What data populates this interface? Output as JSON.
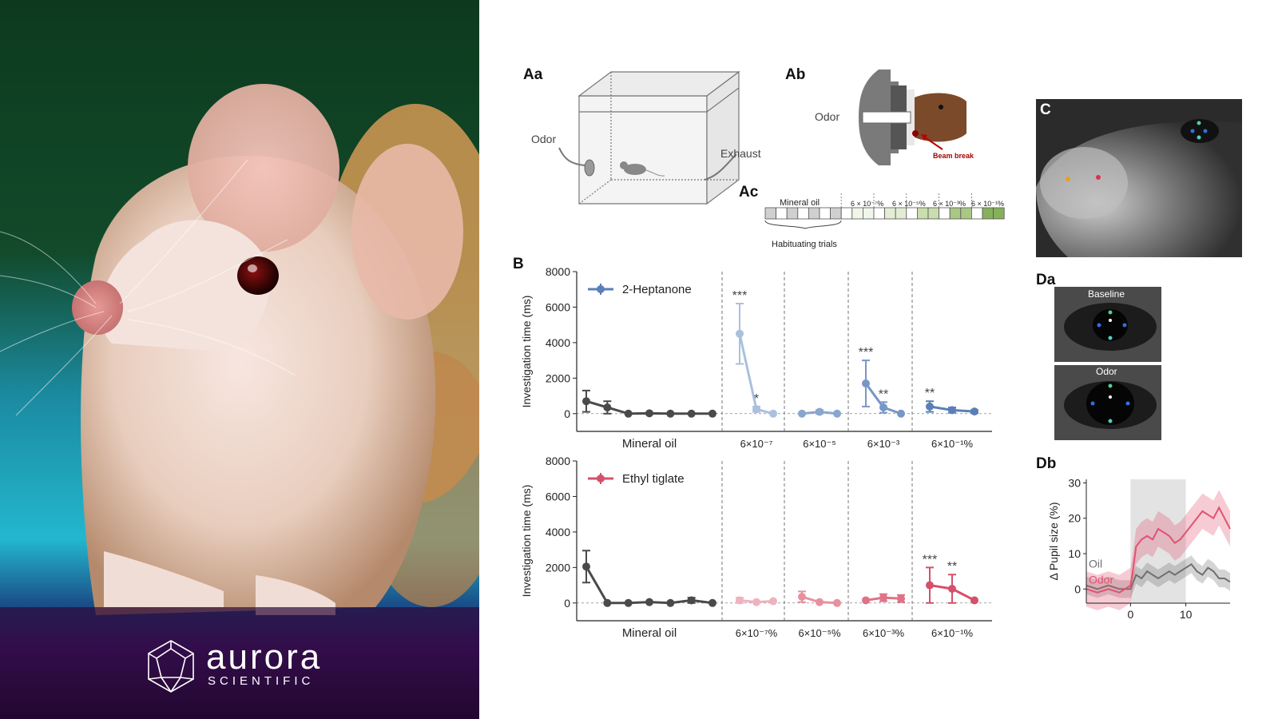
{
  "brand": {
    "name": "aurora",
    "subname": "SCIENTIFIC"
  },
  "panels": {
    "Aa": {
      "label": "Aa",
      "odor": "Odor",
      "exhaust": "Exhaust"
    },
    "Ab": {
      "label": "Ab",
      "odor": "Odor",
      "beam": "Beam break"
    },
    "Ac": {
      "label": "Ac",
      "mineral": "Mineral oil",
      "habituating": "Habituating trials",
      "concs": [
        "6 × 10⁻⁷%",
        "6 × 10⁻⁵%",
        "6 × 10⁻³%",
        "6 × 10⁻¹%"
      ]
    },
    "B": {
      "label": "B"
    },
    "C": {
      "label": "C"
    },
    "Da": {
      "label": "Da",
      "baseline": "Baseline",
      "odor": "Odor"
    },
    "Db": {
      "label": "Db"
    }
  },
  "colors": {
    "mineral": "#4a4a4a",
    "heptanone": "#5a7fb8",
    "tiglate": "#d5506a",
    "stim_shade": "#e3e3e3"
  },
  "chart_data": [
    {
      "type": "line",
      "panel": "B-top",
      "ylabel": "Investigation time (ms)",
      "yticks": [
        0,
        2000,
        4000,
        6000,
        8000
      ],
      "ylim": [
        -1000,
        8000
      ],
      "legend": "2-Heptanone",
      "group_labels": [
        "Mineral oil",
        "6×10⁻⁷",
        "6×10⁻⁵",
        "6×10⁻³",
        "6×10⁻¹%"
      ],
      "series": [
        {
          "name": "Mineral oil",
          "group": 0,
          "color": "#4a4a4a",
          "values": [
            700,
            350,
            0,
            20,
            0,
            0,
            0
          ],
          "err": [
            600,
            350,
            0,
            0,
            0,
            0,
            0
          ]
        },
        {
          "name": "6×10⁻⁷",
          "group": 1,
          "color": "#aac0dd",
          "values": [
            4500,
            250,
            0
          ],
          "err": [
            1700,
            150,
            0
          ],
          "stars": [
            "***",
            "*",
            ""
          ]
        },
        {
          "name": "6×10⁻⁵",
          "group": 2,
          "color": "#8aa6cf",
          "values": [
            0,
            100,
            0
          ],
          "err": [
            0,
            100,
            0
          ],
          "stars": [
            "",
            "",
            ""
          ]
        },
        {
          "name": "6×10⁻³",
          "group": 3,
          "color": "#7797c6",
          "values": [
            1700,
            350,
            0
          ],
          "err": [
            1300,
            300,
            0
          ],
          "stars": [
            "***",
            "**",
            ""
          ]
        },
        {
          "name": "6×10⁻¹%",
          "group": 4,
          "color": "#5a7fb8",
          "values": [
            400,
            200,
            120
          ],
          "err": [
            300,
            150,
            80
          ],
          "stars": [
            "**",
            "",
            ""
          ]
        }
      ]
    },
    {
      "type": "line",
      "panel": "B-bottom",
      "ylabel": "Investigation time (ms)",
      "yticks": [
        0,
        2000,
        4000,
        6000,
        8000
      ],
      "ylim": [
        -1000,
        8000
      ],
      "legend": "Ethyl tiglate",
      "group_labels": [
        "Mineral oil",
        "6×10⁻⁷%",
        "6×10⁻⁵%",
        "6×10⁻³%",
        "6×10⁻¹%"
      ],
      "series": [
        {
          "name": "Mineral oil",
          "group": 0,
          "color": "#4a4a4a",
          "values": [
            2050,
            0,
            0,
            50,
            0,
            150,
            0
          ],
          "err": [
            900,
            0,
            0,
            0,
            0,
            150,
            0
          ]
        },
        {
          "name": "6×10⁻⁷%",
          "group": 1,
          "color": "#eeb3bf",
          "values": [
            150,
            50,
            100
          ],
          "err": [
            150,
            0,
            0
          ],
          "stars": [
            "",
            "",
            ""
          ]
        },
        {
          "name": "6×10⁻⁵%",
          "group": 2,
          "color": "#e7919f",
          "values": [
            350,
            50,
            0
          ],
          "err": [
            300,
            0,
            0
          ],
          "stars": [
            "",
            "",
            ""
          ]
        },
        {
          "name": "6×10⁻³%",
          "group": 3,
          "color": "#df7286",
          "values": [
            150,
            300,
            250
          ],
          "err": [
            0,
            200,
            200
          ],
          "stars": [
            "",
            "",
            ""
          ]
        },
        {
          "name": "6×10⁻¹%",
          "group": 4,
          "color": "#d5506a",
          "values": [
            1000,
            800,
            150
          ],
          "err": [
            1000,
            800,
            0
          ],
          "stars": [
            "***",
            "**",
            ""
          ]
        }
      ]
    },
    {
      "type": "line",
      "panel": "Db",
      "ylabel": "Δ Pupil size (%)",
      "yticks": [
        0,
        10,
        20,
        30
      ],
      "xticks": [
        0,
        10
      ],
      "xlim": [
        -8,
        18
      ],
      "ylim": [
        -4,
        31
      ],
      "stim_window": [
        0,
        10
      ],
      "series": [
        {
          "name": "Oil",
          "color": "#6f6f6f",
          "x": [
            -8,
            -6,
            -4,
            -2,
            0,
            0.5,
            1,
            2,
            3,
            4,
            5,
            6,
            7,
            8,
            9,
            10,
            11,
            12,
            13,
            14,
            15,
            16,
            17,
            18
          ],
          "y": [
            1,
            0,
            1,
            0,
            0,
            2,
            4,
            3,
            5,
            4,
            3,
            4,
            5,
            4,
            5,
            6,
            7,
            5,
            4,
            6,
            5,
            3,
            3,
            2
          ],
          "band": 2.5
        },
        {
          "name": "Odor",
          "color": "#e0526f",
          "x": [
            -8,
            -6,
            -4,
            -2,
            0,
            0.5,
            1,
            2,
            3,
            4,
            5,
            6,
            7,
            8,
            9,
            10,
            11,
            12,
            13,
            14,
            15,
            16,
            17,
            18
          ],
          "y": [
            0,
            -1,
            0,
            -1,
            1,
            6,
            12,
            14,
            15,
            14,
            17,
            16,
            15,
            13,
            14,
            16,
            18,
            20,
            22,
            21,
            20,
            23,
            20,
            17
          ],
          "band": 5
        }
      ]
    }
  ]
}
